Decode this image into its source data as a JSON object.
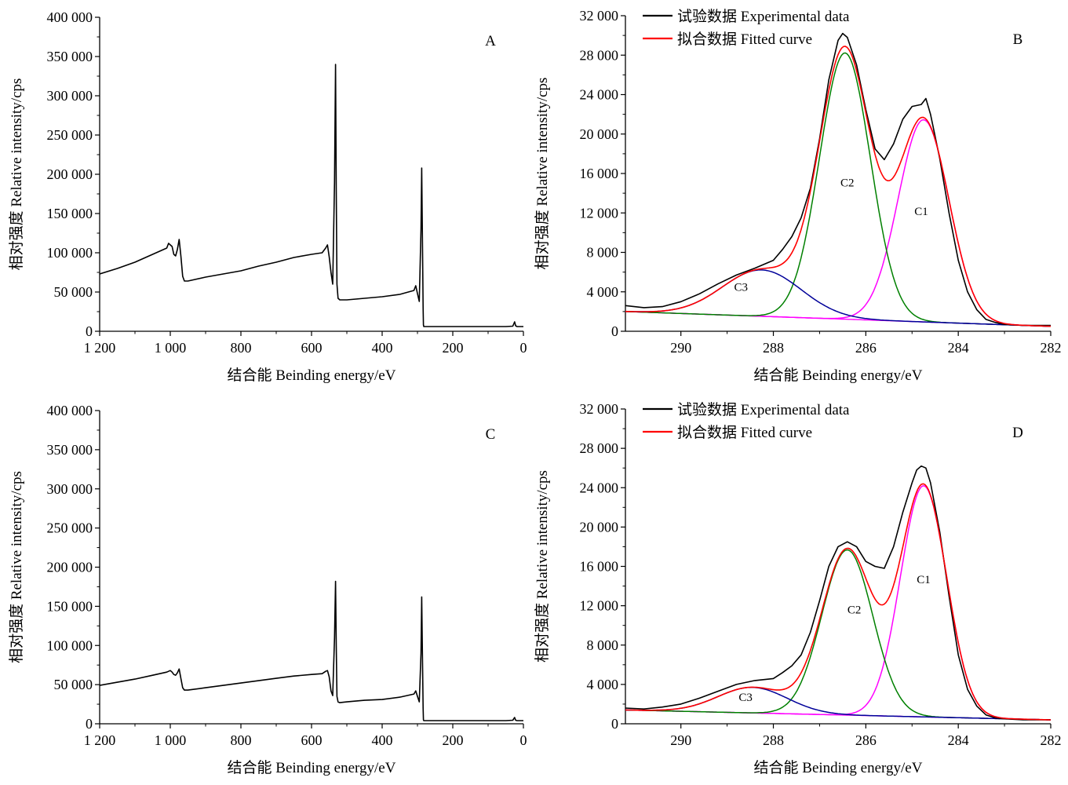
{
  "chart_data": [
    {
      "id": "A",
      "type": "line",
      "panel_label": "A",
      "xlabel": "结合能  Beinding energy/eV",
      "ylabel": "相对强度  Relative intensity/cps",
      "xlim": [
        1200,
        0
      ],
      "ylim": [
        0,
        400000
      ],
      "x_reversed": true,
      "xticks": [
        1200,
        1000,
        800,
        600,
        400,
        200,
        0
      ],
      "xtick_labels": [
        "1 200",
        "1 000",
        "800",
        "600",
        "400",
        "200",
        "0"
      ],
      "yticks": [
        0,
        50000,
        100000,
        150000,
        200000,
        250000,
        300000,
        350000,
        400000
      ],
      "ytick_labels": [
        "0",
        "50 000",
        "100 000",
        "150 000",
        "200 000",
        "250 000",
        "300  000",
        "350 000",
        "400 000"
      ],
      "series": [
        {
          "color": "#000000",
          "x": [
            1200,
            1150,
            1100,
            1050,
            1010,
            1005,
            995,
            990,
            985,
            980,
            975,
            970,
            965,
            960,
            950,
            900,
            850,
            800,
            750,
            700,
            650,
            600,
            570,
            560,
            555,
            550,
            545,
            540,
            535,
            532,
            530,
            528,
            525,
            520,
            500,
            450,
            400,
            350,
            310,
            305,
            300,
            295,
            290,
            288,
            286,
            284,
            283,
            282,
            280,
            260,
            200,
            150,
            100,
            50,
            30,
            25,
            22,
            18,
            10,
            0
          ],
          "y": [
            73000,
            80000,
            88000,
            98000,
            106000,
            112000,
            108000,
            98000,
            96000,
            104000,
            117000,
            96000,
            70000,
            64000,
            64000,
            69000,
            73000,
            77000,
            83000,
            88000,
            94000,
            98000,
            100000,
            106000,
            110000,
            95000,
            75000,
            60000,
            190000,
            340000,
            180000,
            60000,
            42000,
            40000,
            40000,
            42000,
            44000,
            47000,
            52000,
            58000,
            48000,
            38000,
            130000,
            208000,
            120000,
            30000,
            8000,
            6000,
            6000,
            6000,
            6000,
            6000,
            6000,
            6000,
            6500,
            12000,
            7000,
            6000,
            6000,
            6000
          ]
        }
      ]
    },
    {
      "id": "B",
      "type": "line",
      "panel_label": "B",
      "xlabel": "结合能  Beinding energy/eV",
      "ylabel": "相对强度  Relative intensity/cps",
      "xlim": [
        291.2,
        282
      ],
      "ylim": [
        0,
        32000
      ],
      "x_reversed": true,
      "xticks": [
        290,
        288,
        286,
        284,
        282
      ],
      "xtick_labels": [
        "290",
        "288",
        "286",
        "284",
        "282"
      ],
      "yticks": [
        0,
        4000,
        8000,
        12000,
        16000,
        20000,
        24000,
        28000,
        32000
      ],
      "ytick_labels": [
        "0",
        "4 000",
        "8 000",
        "12 000",
        "16 000",
        "20 000",
        "24 000",
        "28 000",
        "32 000"
      ],
      "legend": [
        {
          "label": "试验数据  Experimental data",
          "color": "#000000"
        },
        {
          "label": "拟合数据  Fitted curve",
          "color": "#ff0000"
        }
      ],
      "legend_placement": "top-left",
      "annotations": [
        {
          "text": "C1",
          "x": 284.8,
          "y": 11800
        },
        {
          "text": "C2",
          "x": 286.4,
          "y": 14700
        },
        {
          "text": "C3",
          "x": 288.7,
          "y": 4100
        }
      ],
      "background": {
        "x0": 291.2,
        "y0": 2000,
        "x1": 282,
        "y1": 500
      },
      "components": [
        {
          "name": "C1",
          "center": 284.75,
          "amplitude": 20500,
          "sigma": 0.55,
          "color": "#ff00ff"
        },
        {
          "name": "C2",
          "center": 286.45,
          "amplitude": 27000,
          "sigma": 0.55,
          "color": "#008000"
        },
        {
          "name": "C3",
          "center": 288.25,
          "amplitude": 4700,
          "sigma": 0.85,
          "color": "#000099"
        }
      ],
      "fitted_color": "#ff0000",
      "experimental": {
        "color": "#000000",
        "x": [
          291.2,
          290.8,
          290.4,
          290.0,
          289.6,
          289.2,
          288.8,
          288.4,
          288.0,
          287.8,
          287.6,
          287.4,
          287.2,
          287.0,
          286.8,
          286.6,
          286.5,
          286.4,
          286.2,
          286.0,
          285.8,
          285.6,
          285.4,
          285.2,
          285.0,
          284.8,
          284.7,
          284.6,
          284.4,
          284.2,
          284.0,
          283.8,
          283.6,
          283.4,
          283.2,
          283.0,
          282.6,
          282.0
        ],
        "y": [
          2600,
          2400,
          2500,
          3000,
          3800,
          4800,
          5700,
          6400,
          7200,
          8300,
          9600,
          11500,
          14500,
          19500,
          25500,
          29500,
          30200,
          29800,
          27000,
          22500,
          18500,
          17400,
          19000,
          21500,
          22800,
          23000,
          23600,
          22000,
          17500,
          12000,
          7200,
          4000,
          2200,
          1200,
          900,
          700,
          600,
          600
        ]
      }
    },
    {
      "id": "C",
      "type": "line",
      "panel_label": "C",
      "xlabel": "结合能  Beinding energy/eV",
      "ylabel": "相对强度  Relative intensity/cps",
      "xlim": [
        1200,
        0
      ],
      "ylim": [
        0,
        400000
      ],
      "x_reversed": true,
      "xticks": [
        1200,
        1000,
        800,
        600,
        400,
        200,
        0
      ],
      "xtick_labels": [
        "1 200",
        "1 000",
        "800",
        "600",
        "400",
        "200",
        "0"
      ],
      "yticks": [
        0,
        50000,
        100000,
        150000,
        200000,
        250000,
        300000,
        350000,
        400000
      ],
      "ytick_labels": [
        "0",
        "50 000",
        "100 000",
        "150 000",
        "200 000",
        "250 000",
        "300  000",
        "350 000",
        "400 000"
      ],
      "series": [
        {
          "color": "#000000",
          "x": [
            1200,
            1150,
            1100,
            1050,
            1010,
            1000,
            995,
            990,
            985,
            980,
            975,
            970,
            965,
            960,
            950,
            900,
            850,
            800,
            750,
            700,
            650,
            600,
            570,
            560,
            555,
            550,
            545,
            540,
            535,
            532,
            530,
            528,
            525,
            520,
            500,
            450,
            400,
            350,
            310,
            305,
            300,
            295,
            290,
            288,
            286,
            284,
            283,
            282,
            280,
            260,
            200,
            150,
            100,
            50,
            30,
            25,
            22,
            18,
            10,
            0
          ],
          "y": [
            49000,
            53000,
            57000,
            62000,
            66000,
            68000,
            66000,
            63000,
            62000,
            65000,
            70000,
            58000,
            46000,
            43000,
            43000,
            46000,
            49000,
            52000,
            55000,
            58000,
            61000,
            63000,
            64000,
            67000,
            68000,
            60000,
            42000,
            36000,
            110000,
            182000,
            100000,
            35000,
            28000,
            27000,
            28000,
            30000,
            31000,
            34000,
            38000,
            42000,
            35000,
            28000,
            90000,
            162000,
            90000,
            20000,
            5000,
            4000,
            4000,
            4000,
            4000,
            4000,
            4000,
            4000,
            4500,
            8000,
            4500,
            4000,
            4000,
            4000
          ]
        }
      ]
    },
    {
      "id": "D",
      "type": "line",
      "panel_label": "D",
      "xlabel": "结合能  Beinding energy/eV",
      "ylabel": "相对强度  Relative intensity/cps",
      "xlim": [
        291.2,
        282
      ],
      "ylim": [
        0,
        32000
      ],
      "x_reversed": true,
      "xticks": [
        290,
        288,
        286,
        284,
        282
      ],
      "xtick_labels": [
        "290",
        "288",
        "286",
        "284",
        "282"
      ],
      "yticks": [
        0,
        4000,
        8000,
        12000,
        16000,
        20000,
        24000,
        28000,
        32000
      ],
      "ytick_labels": [
        "0",
        "4 000",
        "8 000",
        "12 000",
        "16 000",
        "20 000",
        "24 000",
        "28 000",
        "32 000"
      ],
      "legend": [
        {
          "label": "试验数据  Experimental data",
          "color": "#000000"
        },
        {
          "label": "拟合数据  Fitted curve",
          "color": "#ff0000"
        }
      ],
      "legend_placement": "top-left",
      "annotations": [
        {
          "text": "C1",
          "x": 284.75,
          "y": 14300
        },
        {
          "text": "C2",
          "x": 286.25,
          "y": 11200
        },
        {
          "text": "C3",
          "x": 288.6,
          "y": 2300
        }
      ],
      "background": {
        "x0": 291.2,
        "y0": 1400,
        "x1": 282,
        "y1": 400
      },
      "components": [
        {
          "name": "C1",
          "center": 284.75,
          "amplitude": 23500,
          "sigma": 0.5,
          "color": "#ff00ff"
        },
        {
          "name": "C2",
          "center": 286.4,
          "amplitude": 16800,
          "sigma": 0.55,
          "color": "#008000"
        },
        {
          "name": "C3",
          "center": 288.45,
          "amplitude": 2600,
          "sigma": 0.75,
          "color": "#000099"
        }
      ],
      "fitted_color": "#ff0000",
      "experimental": {
        "color": "#000000",
        "x": [
          291.2,
          290.8,
          290.4,
          290.0,
          289.6,
          289.2,
          288.8,
          288.4,
          288.0,
          287.8,
          287.6,
          287.4,
          287.2,
          287.0,
          286.8,
          286.6,
          286.4,
          286.2,
          286.0,
          285.8,
          285.6,
          285.4,
          285.2,
          285.0,
          284.9,
          284.8,
          284.7,
          284.6,
          284.4,
          284.2,
          284.0,
          283.8,
          283.6,
          283.4,
          283.2,
          283.0,
          282.6,
          282.0
        ],
        "y": [
          1600,
          1500,
          1700,
          2000,
          2600,
          3300,
          4000,
          4400,
          4600,
          5200,
          5900,
          7000,
          9300,
          12500,
          16000,
          18000,
          18500,
          18000,
          16500,
          16000,
          15800,
          18000,
          21500,
          24500,
          25800,
          26200,
          26000,
          24500,
          19500,
          13000,
          7000,
          3500,
          1800,
          900,
          600,
          500,
          400,
          400
        ]
      }
    }
  ]
}
